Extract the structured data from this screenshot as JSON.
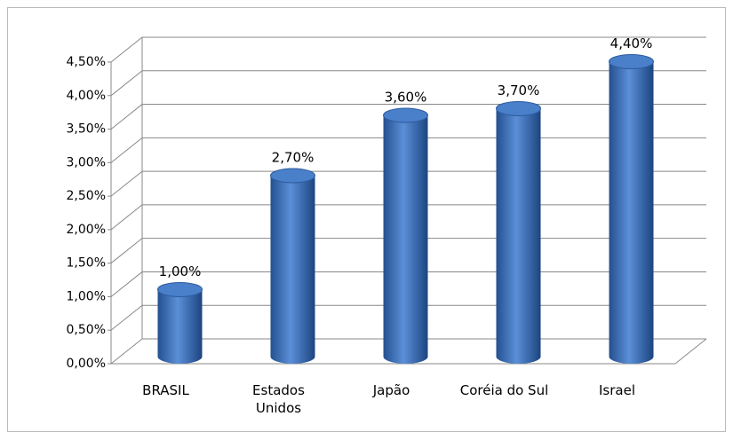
{
  "chart_data": {
    "type": "bar",
    "categories": [
      "BRASIL",
      "Estados Unidos",
      "Japão",
      "Coréia do Sul",
      "Israel"
    ],
    "values": [
      1.0,
      2.7,
      3.6,
      3.7,
      4.4
    ],
    "value_labels": [
      "1,00%",
      "2,70%",
      "3,60%",
      "3,70%",
      "4,40%"
    ],
    "color": "#3a6fb8",
    "ylim": [
      0,
      4.5
    ],
    "yticks": [
      {
        "value": 0,
        "label": "0,00%"
      },
      {
        "value": 0.5,
        "label": "0,50%"
      },
      {
        "value": 1,
        "label": "1,00%"
      },
      {
        "value": 1.5,
        "label": "1,50%"
      },
      {
        "value": 2,
        "label": "2,00%"
      },
      {
        "value": 2.5,
        "label": "2,50%"
      },
      {
        "value": 3,
        "label": "3,00%"
      },
      {
        "value": 3.5,
        "label": "3,50%"
      },
      {
        "value": 4,
        "label": "4,00%"
      },
      {
        "value": 4.5,
        "label": "4,50%"
      }
    ],
    "grid": true
  }
}
